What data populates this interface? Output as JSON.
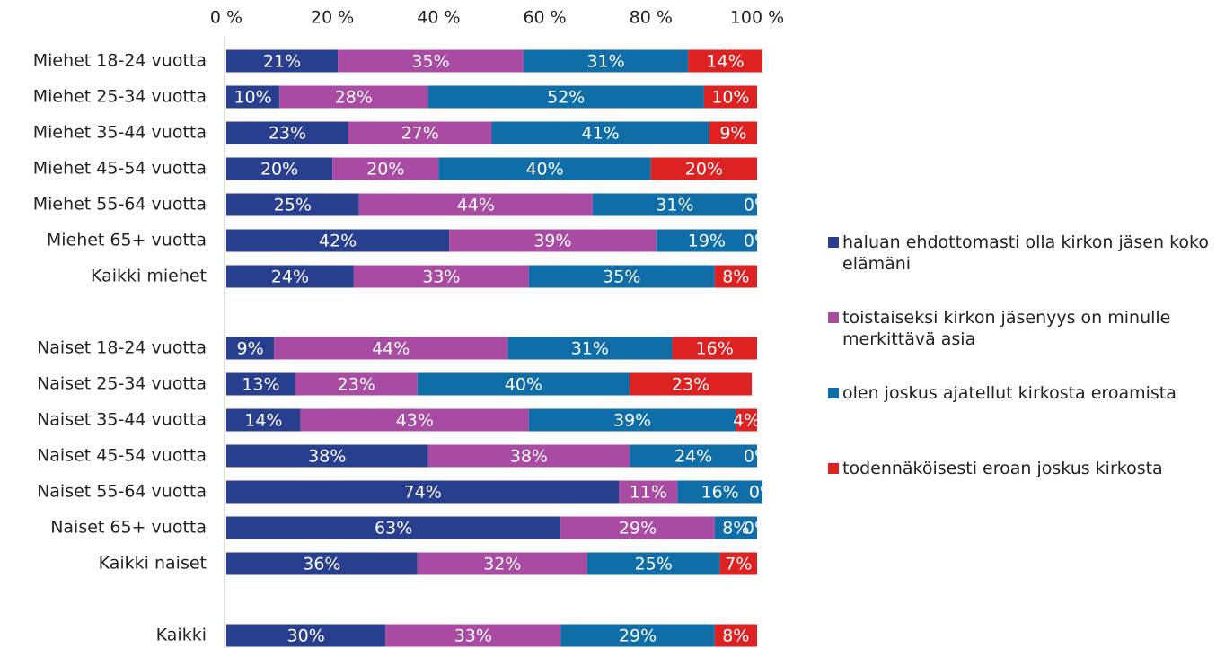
{
  "chart_data": {
    "type": "stacked_bar_horizontal",
    "categories": [
      "Miehet 18-24 vuotta",
      "Miehet 25-34 vuotta",
      "Miehet 35-44 vuotta",
      "Miehet 45-54 vuotta",
      "Miehet 55-64 vuotta",
      "Miehet 65+ vuotta",
      "Kaikki miehet",
      null,
      "Naiset 18-24 vuotta",
      "Naiset 25-34 vuotta",
      "Naiset 35-44 vuotta",
      "Naiset 45-54 vuotta",
      "Naiset 55-64 vuotta",
      "Naiset 65+ vuotta",
      "Kaikki naiset",
      null,
      "Kaikki"
    ],
    "series": [
      {
        "name": "haluan ehdottomasti olla kirkon jäsen koko elämäni",
        "color": "#283f8f",
        "values": [
          21,
          10,
          23,
          20,
          25,
          42,
          24,
          null,
          9,
          13,
          14,
          38,
          74,
          63,
          36,
          null,
          30
        ],
        "value_labels": [
          "21%",
          "10%",
          "23%",
          "20%",
          "25%",
          "42%",
          "24%",
          null,
          "9%",
          "13%",
          "14%",
          "38%",
          "74%",
          "63%",
          "36%",
          null,
          "30%"
        ]
      },
      {
        "name": "toistaiseksi kirkon jäsenyys on minulle merkittävä asia",
        "color": "#a94ba3",
        "values": [
          35,
          28,
          27,
          20,
          44,
          39,
          33,
          null,
          44,
          23,
          43,
          38,
          11,
          29,
          32,
          null,
          33
        ],
        "value_labels": [
          "35%",
          "28%",
          "27%",
          "20%",
          "44%",
          "39%",
          "33%",
          null,
          "44%",
          "23%",
          "43%",
          "38%",
          "11%",
          "29%",
          "32%",
          null,
          "33%"
        ]
      },
      {
        "name": "olen joskus ajatellut kirkosta eroamista",
        "color": "#0f6ea8",
        "values": [
          31,
          52,
          41,
          40,
          31,
          19,
          35,
          null,
          31,
          40,
          39,
          24,
          16,
          8,
          25,
          null,
          29
        ],
        "value_labels": [
          "31%",
          "52%",
          "41%",
          "40%",
          "31%",
          "19%",
          "35%",
          null,
          "31%",
          "40%",
          "39%",
          "24%",
          "16%",
          "8%",
          "25%",
          null,
          "29%"
        ]
      },
      {
        "name": "todennäköisesti eroan joskus kirkosta",
        "color": "#dd2222",
        "values": [
          14,
          10,
          9,
          20,
          0,
          0,
          8,
          null,
          16,
          23,
          4,
          0,
          0,
          0,
          7,
          null,
          8
        ],
        "value_labels": [
          "14%",
          "10%",
          "9%",
          "20%",
          "0%",
          "0%",
          "8%",
          null,
          "16%",
          "23%",
          "4%",
          "0%",
          "0%",
          "0%",
          "7%",
          null,
          "8%"
        ]
      }
    ],
    "xlim": [
      0,
      100
    ],
    "xticks": [
      {
        "value": 0,
        "label": "0 %"
      },
      {
        "value": 20,
        "label": "20 %"
      },
      {
        "value": 40,
        "label": "40 %"
      },
      {
        "value": 60,
        "label": "60 %"
      },
      {
        "value": 80,
        "label": "80 %"
      },
      {
        "value": 100,
        "label": "100 %"
      }
    ],
    "legend": "right"
  }
}
